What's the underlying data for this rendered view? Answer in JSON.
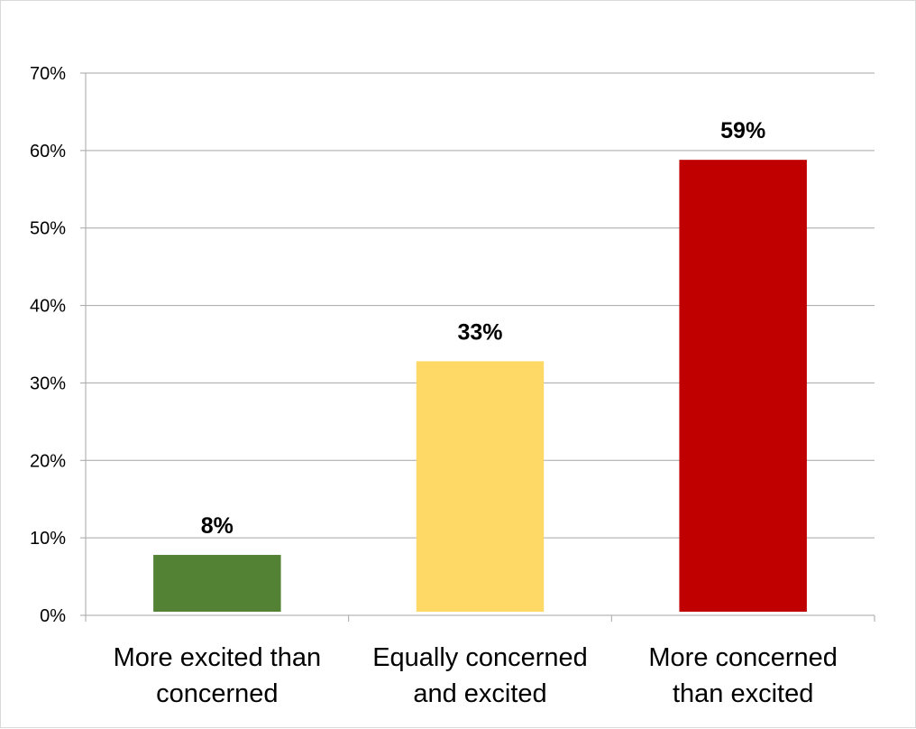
{
  "chart_data": {
    "type": "bar",
    "categories": [
      [
        "More excited than",
        "concerned"
      ],
      [
        "Equally concerned",
        "and excited"
      ],
      [
        "More concerned",
        "than excited"
      ]
    ],
    "values": [
      8,
      33,
      59
    ],
    "bar_values": [
      7.8,
      32.8,
      58.8
    ],
    "data_labels": [
      "8%",
      "33%",
      "59%"
    ],
    "colors": [
      "#548235",
      "#ffd966",
      "#c00000"
    ],
    "ylim": [
      0,
      70
    ],
    "yticks": [
      0,
      10,
      20,
      30,
      40,
      50,
      60,
      70
    ],
    "ytick_labels": [
      "0%",
      "10%",
      "20%",
      "30%",
      "40%",
      "50%",
      "60%",
      "70%"
    ],
    "grid": true,
    "legend": "none"
  }
}
